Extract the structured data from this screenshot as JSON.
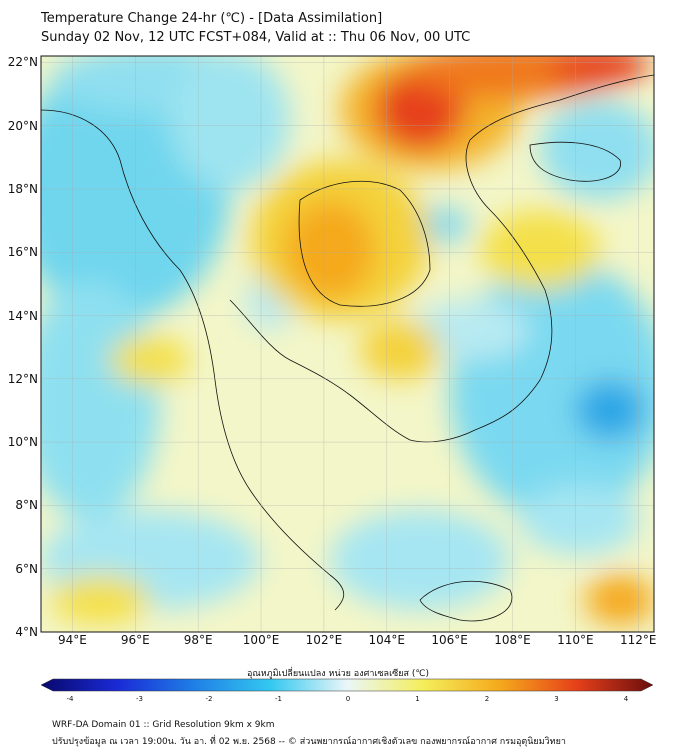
{
  "header": {
    "title": "Temperature Change 24-hr (℃) - [Data Assimilation]",
    "subtitle": "Sunday 02 Nov, 12 UTC FCST+084, Valid at :: Thu 06 Nov, 00 UTC"
  },
  "map": {
    "lat_labels": [
      "22°N",
      "20°N",
      "18°N",
      "16°N",
      "14°N",
      "12°N",
      "10°N",
      "8°N",
      "6°N",
      "4°N"
    ],
    "lon_labels": [
      "94°E",
      "96°E",
      "98°E",
      "100°E",
      "102°E",
      "104°E",
      "106°E",
      "108°E",
      "110°E",
      "112°E"
    ],
    "lat_range": [
      4,
      22.2
    ],
    "lon_range": [
      93,
      112.5
    ]
  },
  "colorbar": {
    "title": "อุณหภูมิเปลี่ยนแปลง หน่วย องศาเซลเซียส (℃)",
    "ticks": [
      "-4",
      "-3",
      "-2",
      "-1",
      "0",
      "1",
      "2",
      "3",
      "4"
    ],
    "range": [
      -4,
      4
    ],
    "colors": [
      "#08086b",
      "#1a2ad6",
      "#1f7fe6",
      "#33c8f0",
      "#eaf6f8",
      "#f4ee5a",
      "#f5a91c",
      "#e6401a",
      "#6b0d0d"
    ]
  },
  "footer": {
    "line1": "WRF-DA Domain 01 :: Grid Resolution 9km x 9km",
    "line2": "ปรับปรุงข้อมูล ณ เวลา 19:00น. วัน อา. ที่ 02 พ.ย. 2568 -- © ส่วนพยากรณ์อากาศเชิงตัวเลข กองพยากรณ์อากาศ กรมอุตุนิยมวิทยา"
  }
}
